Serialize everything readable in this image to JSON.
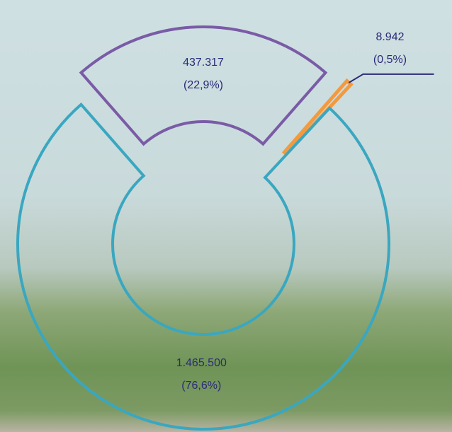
{
  "chart_data": {
    "type": "pie",
    "donut": true,
    "categories": [
      null,
      null,
      null
    ],
    "values": [
      437317,
      8942,
      1465500
    ],
    "value_labels": [
      "437.317",
      "8.942",
      "1.465.500"
    ],
    "percents": [
      22.9,
      0.5,
      76.6
    ],
    "percent_labels": [
      "(22,9%)",
      "(0,5%)",
      "(76,6%)"
    ],
    "colors": [
      "#7a5ba6",
      "#f39a3e",
      "#3aa7c0"
    ]
  }
}
